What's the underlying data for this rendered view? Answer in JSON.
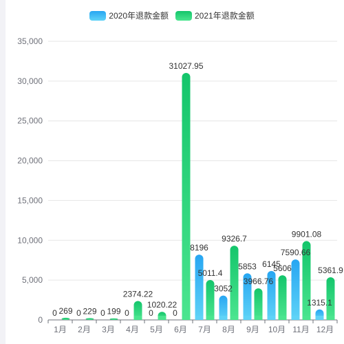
{
  "chart_data": {
    "type": "bar",
    "categories": [
      "1月",
      "2月",
      "3月",
      "4月",
      "5月",
      "6月",
      "7月",
      "8月",
      "9月",
      "10月",
      "11月",
      "12月"
    ],
    "series": [
      {
        "name": "2020年退款金额",
        "values": [
          0,
          0,
          0,
          0,
          0,
          0,
          8196,
          3052,
          5853,
          6145,
          7590.66,
          1315.1
        ],
        "labels": [
          "0",
          "0",
          "0",
          "0",
          "0",
          "0",
          "8196",
          "3052",
          "5853",
          "6145",
          "7590.66",
          "1315.1"
        ]
      },
      {
        "name": "2021年退款金额",
        "values": [
          269,
          229,
          199,
          2374.22,
          1020.22,
          31027.95,
          5011.4,
          9326.7,
          3966.76,
          5606,
          9901.08,
          5361.9
        ],
        "labels": [
          "269",
          "229",
          "199",
          "2374.22",
          "1020.22",
          "31027.95",
          "5011.4",
          "9326.7",
          "3966.76",
          "5606",
          "9901.08",
          "5361.9"
        ]
      }
    ],
    "yticks": [
      "0",
      "5,000",
      "10,000",
      "15,000",
      "20,000",
      "25,000",
      "30,000",
      "35,000"
    ],
    "ylim": [
      0,
      35000
    ],
    "legend_position": "top-center",
    "grid": true,
    "colors": {
      "series_2020_top": "#27a6f2",
      "series_2020_bottom": "#5fd3f7",
      "series_2021_top": "#14c56b",
      "series_2021_bottom": "#4be58f",
      "grid": "#e6e6e6",
      "axis": "#6e7079"
    }
  }
}
